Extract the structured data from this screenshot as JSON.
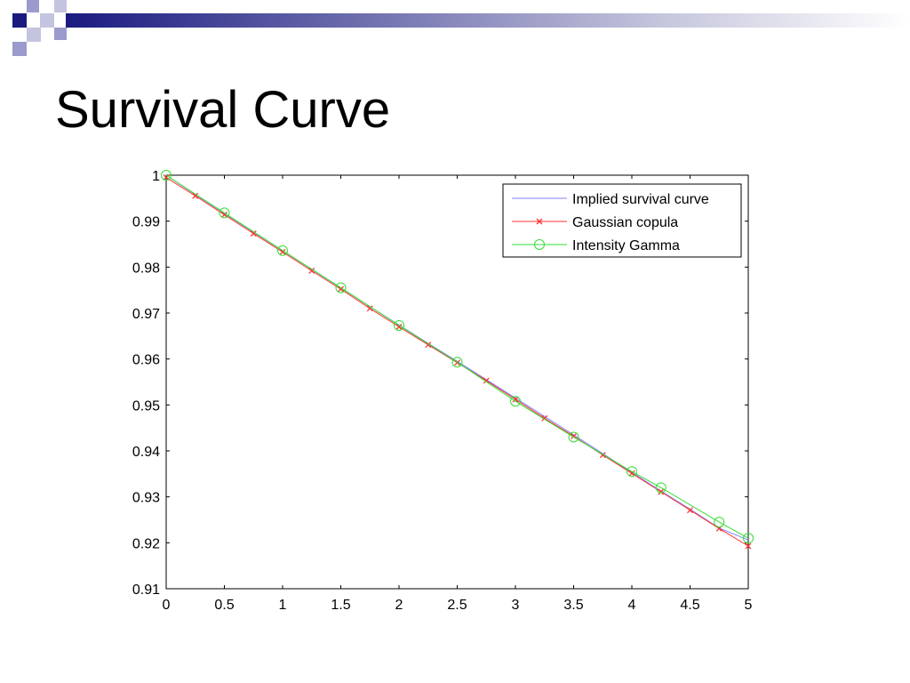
{
  "slide": {
    "title": "Survival Curve"
  },
  "colors": {
    "banner_dark": "#1a1a80",
    "banner_light": "#ffffff",
    "implied": "#8080ff",
    "gaussian": "#ff3030",
    "intensity": "#33dd33"
  },
  "chart_data": {
    "type": "line",
    "xlim": [
      0,
      5
    ],
    "ylim": [
      0.91,
      1.0
    ],
    "xticks": [
      0,
      0.5,
      1,
      1.5,
      2,
      2.5,
      3,
      3.5,
      4,
      4.5,
      5
    ],
    "xtick_labels": [
      "0",
      "0.5",
      "1",
      "1.5",
      "2",
      "2.5",
      "3",
      "3.5",
      "4",
      "4.5",
      "5"
    ],
    "yticks": [
      0.91,
      0.92,
      0.93,
      0.94,
      0.95,
      0.96,
      0.97,
      0.98,
      0.99,
      1.0
    ],
    "ytick_labels": [
      "0.91",
      "0.92",
      "0.93",
      "0.94",
      "0.95",
      "0.96",
      "0.97",
      "0.98",
      "0.99",
      "1"
    ],
    "grid": false,
    "legend_position": "top-right",
    "series": [
      {
        "name": "Implied survival curve",
        "marker": "none",
        "x": [
          0,
          0.25,
          0.5,
          0.75,
          1,
          1.25,
          1.5,
          1.75,
          2,
          2.25,
          2.5,
          2.75,
          3,
          3.25,
          3.5,
          3.75,
          4,
          4.25,
          4.5,
          4.75,
          5
        ],
        "y": [
          1.0,
          0.9958,
          0.9917,
          0.9876,
          0.9836,
          0.9795,
          0.9755,
          0.9714,
          0.9674,
          0.9634,
          0.9595,
          0.9555,
          0.9515,
          0.9475,
          0.9435,
          0.9394,
          0.9353,
          0.9313,
          0.9273,
          0.9232,
          0.9206
        ]
      },
      {
        "name": "Gaussian copula",
        "marker": "x",
        "x": [
          0,
          0.25,
          0.5,
          0.75,
          1,
          1.25,
          1.5,
          1.75,
          2,
          2.25,
          2.5,
          2.75,
          3,
          3.25,
          3.5,
          3.75,
          4,
          4.25,
          4.5,
          4.75,
          5
        ],
        "y": [
          0.9995,
          0.9955,
          0.9914,
          0.9873,
          0.9833,
          0.9792,
          0.9752,
          0.971,
          0.967,
          0.9631,
          0.9592,
          0.9553,
          0.9512,
          0.9471,
          0.9432,
          0.9391,
          0.9351,
          0.9311,
          0.9271,
          0.9231,
          0.9193
        ]
      },
      {
        "name": "Intensity Gamma",
        "marker": "o",
        "x": [
          0,
          0.5,
          1,
          1.5,
          2,
          2.5,
          3,
          3.5,
          4,
          4.25,
          4.75,
          5
        ],
        "y": [
          1.0,
          0.9918,
          0.9836,
          0.9755,
          0.9673,
          0.9593,
          0.9508,
          0.943,
          0.9355,
          0.932,
          0.9245,
          0.921
        ]
      }
    ]
  }
}
